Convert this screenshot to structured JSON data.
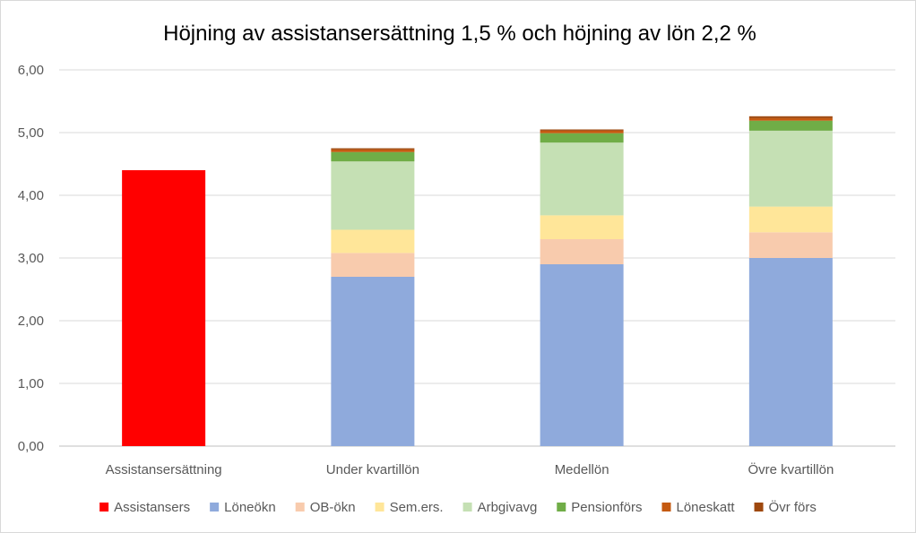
{
  "chart_data": {
    "type": "bar",
    "stacked": true,
    "title": "Höjning av assistansersättning 1,5 % och höjning av lön 2,2 %",
    "xlabel": "",
    "ylabel": "",
    "ylim": [
      0,
      6
    ],
    "y_ticks": [
      "0,00",
      "1,00",
      "2,00",
      "3,00",
      "4,00",
      "5,00",
      "6,00"
    ],
    "y_tick_values": [
      0,
      1,
      2,
      3,
      4,
      5,
      6
    ],
    "grid": true,
    "legend_position": "bottom",
    "categories": [
      "Assistansersättning",
      "Under kvartillön",
      "Medellön",
      "Övre kvartillön"
    ],
    "series": [
      {
        "name": "Assistansers",
        "color": "#ff0000",
        "values": [
          4.4,
          0,
          0,
          0
        ]
      },
      {
        "name": "Löneökn",
        "color": "#8faadc",
        "values": [
          0,
          2.7,
          2.9,
          3.0
        ]
      },
      {
        "name": "OB-ökn",
        "color": "#f8cbad",
        "values": [
          0,
          0.38,
          0.4,
          0.41
        ]
      },
      {
        "name": "Sem.ers.",
        "color": "#ffe699",
        "values": [
          0,
          0.37,
          0.38,
          0.41
        ]
      },
      {
        "name": "Arbgivavg",
        "color": "#c5e0b4",
        "values": [
          0,
          1.09,
          1.16,
          1.21
        ]
      },
      {
        "name": "Pensionförs",
        "color": "#70ad47",
        "values": [
          0,
          0.15,
          0.15,
          0.16
        ]
      },
      {
        "name": "Löneskatt",
        "color": "#c55a11",
        "values": [
          0,
          0.04,
          0.04,
          0.04
        ]
      },
      {
        "name": "Övr förs",
        "color": "#9e480e",
        "values": [
          0,
          0.02,
          0.02,
          0.03
        ]
      }
    ]
  }
}
